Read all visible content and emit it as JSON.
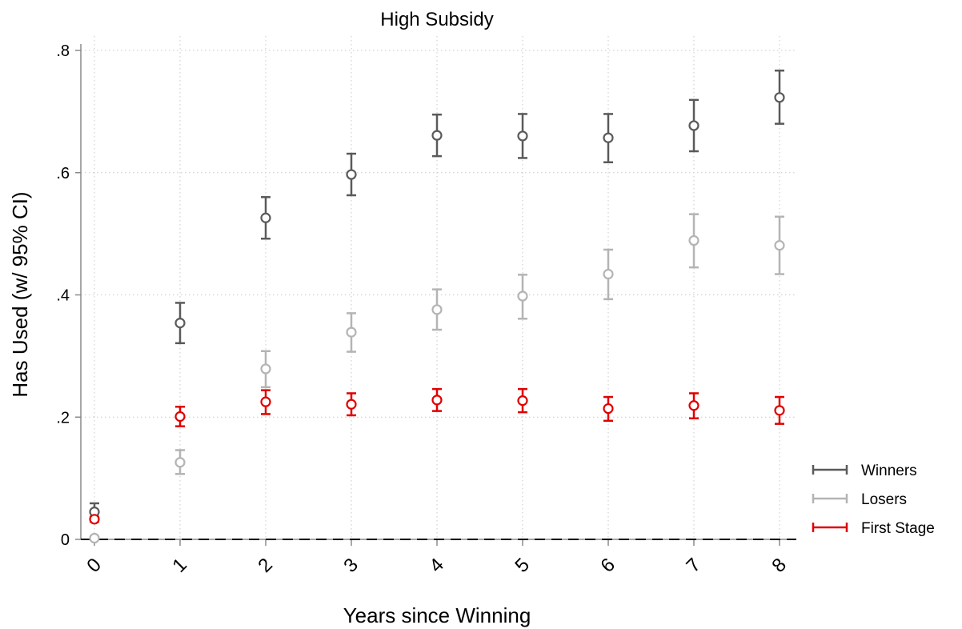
{
  "chart_data": {
    "type": "scatter",
    "title": "High Subsidy",
    "xlabel": "Years since Winning",
    "ylabel": "Has Used (w/ 95% CI)",
    "x": [
      0,
      1,
      2,
      3,
      4,
      5,
      6,
      7,
      8
    ],
    "x_tick_labels": [
      "0",
      "1",
      "2",
      "3",
      "4",
      "5",
      "6",
      "7",
      "8"
    ],
    "y_ticks": [
      0,
      0.2,
      0.4,
      0.6,
      0.8
    ],
    "y_tick_labels": [
      "0",
      ".2",
      ".4",
      ".6",
      ".8"
    ],
    "ylim": [
      0,
      0.8
    ],
    "grid": true,
    "reference_line": {
      "y": 0,
      "style": "dashed"
    },
    "legend_position": "right",
    "series": [
      {
        "name": "Winners",
        "color": "#5a5a5a",
        "values": [
          0.045,
          0.354,
          0.526,
          0.597,
          0.661,
          0.66,
          0.657,
          0.677,
          0.723
        ],
        "ci_low": [
          0.03,
          0.321,
          0.492,
          0.563,
          0.627,
          0.624,
          0.617,
          0.635,
          0.68
        ],
        "ci_high": [
          0.059,
          0.387,
          0.56,
          0.631,
          0.695,
          0.696,
          0.696,
          0.719,
          0.767
        ]
      },
      {
        "name": "Losers",
        "color": "#b4b4b4",
        "values": [
          0.002,
          0.126,
          0.279,
          0.339,
          0.376,
          0.398,
          0.434,
          0.489,
          0.481
        ],
        "ci_low": [
          0.0,
          0.107,
          0.249,
          0.307,
          0.343,
          0.361,
          0.393,
          0.445,
          0.434
        ],
        "ci_high": [
          0.004,
          0.146,
          0.308,
          0.37,
          0.409,
          0.433,
          0.474,
          0.532,
          0.528
        ]
      },
      {
        "name": "First Stage",
        "color": "#e00000",
        "values": [
          0.033,
          0.201,
          0.225,
          0.221,
          0.228,
          0.227,
          0.214,
          0.219,
          0.211
        ],
        "ci_low": [
          0.029,
          0.185,
          0.205,
          0.203,
          0.21,
          0.208,
          0.194,
          0.198,
          0.189
        ],
        "ci_high": [
          0.037,
          0.217,
          0.244,
          0.239,
          0.246,
          0.246,
          0.233,
          0.239,
          0.233
        ]
      }
    ]
  }
}
